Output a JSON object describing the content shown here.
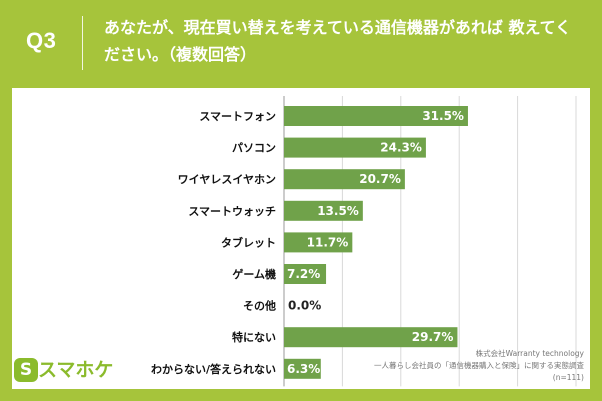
{
  "header": {
    "question_number": "Q3",
    "title": "あなたが、現在買い替えを考えている通信機器があれば 教えてください。（複数回答）"
  },
  "chart_data": {
    "type": "bar",
    "orientation": "horizontal",
    "categories": [
      "スマートフォン",
      "パソコン",
      "ワイヤレスイヤホン",
      "スマートウォッチ",
      "タブレット",
      "ゲーム機",
      "その他",
      "特にない",
      "わからない/答えられない"
    ],
    "values": [
      31.5,
      24.3,
      20.7,
      13.5,
      11.7,
      7.2,
      0.0,
      29.7,
      6.3
    ],
    "value_labels": [
      "31.5%",
      "24.3%",
      "20.7%",
      "13.5%",
      "11.7%",
      "7.2%",
      "0.0%",
      "29.7%",
      "6.3%"
    ],
    "xlim": [
      0,
      50
    ],
    "grid": true,
    "bar_color": "#70a24a",
    "gridline_color": "#d9d9d9"
  },
  "logo": {
    "mark": "S",
    "text": "スマホケ",
    "color": "#8bbb2c"
  },
  "source": {
    "line1": "株式会社Warranty technology",
    "line2": "一人暮らし会社員の「通信機器購入と保険」に関する実態調査",
    "line3": "(n=111)"
  }
}
